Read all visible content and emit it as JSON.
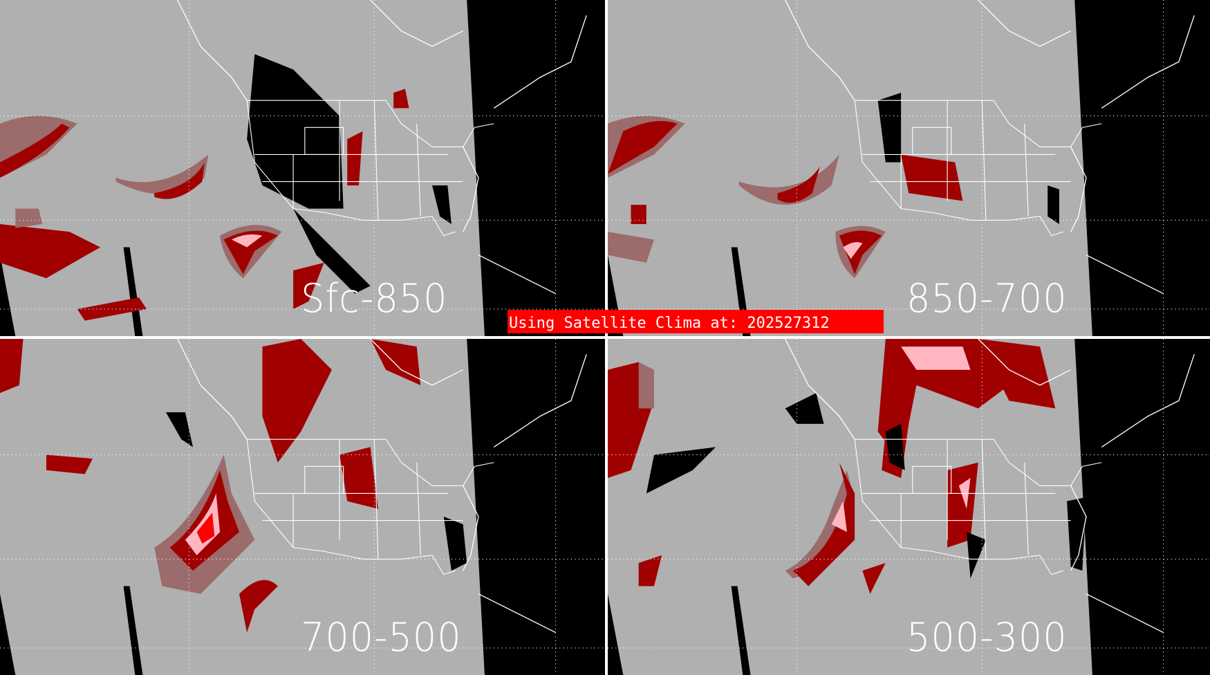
{
  "panels": [
    {
      "label": "Sfc-850"
    },
    {
      "label": "850-700"
    },
    {
      "label": "700-500"
    },
    {
      "label": "500-300"
    }
  ],
  "banner": {
    "text": "Using Satellite Clima at: 202527312"
  },
  "colors": {
    "background": "#000000",
    "clear": "#b0b0b0",
    "low": "#9c6b6b",
    "moderate": "#a00000",
    "high": "#ff0000",
    "very_high": "#ffb6c1",
    "outlines": "#ffffff",
    "banner": "#ff0000"
  }
}
